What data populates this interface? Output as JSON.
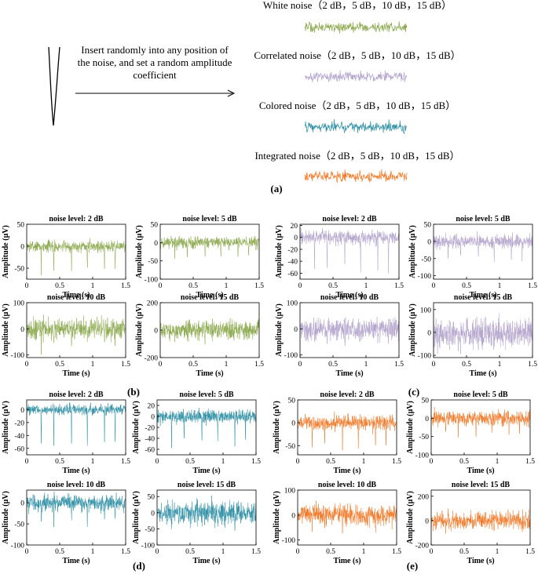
{
  "panel_a": {
    "label": "(a)",
    "insert_text": [
      "Insert randomly into any position of",
      "the noise, and set a random amplitude",
      "coefficient"
    ],
    "rows": [
      {
        "label": "White noise（2 dB，5 dB，10 dB，15 dB）",
        "color": "#8ba84c"
      },
      {
        "label": "Correlated noise（2 dB，5 dB，10 dB，15 dB）",
        "color": "#b3a3cc"
      },
      {
        "label": "Colored noise（2 dB，5 dB，10 dB，15 dB）",
        "color": "#2e8fa5"
      },
      {
        "label": "Integrated noise（2 dB，5 dB，10 dB，15 dB）",
        "color": "#f07826"
      }
    ]
  },
  "chart_data": [
    {
      "panel": "(b)",
      "type": "line",
      "noise": "White noise",
      "color": "#8ba84c",
      "xlabel": "Time (s)",
      "ylabel": "Amplitude (μV)",
      "x_ticks": [
        "0",
        "0.5",
        "1",
        "1.5"
      ],
      "xlim": [
        0,
        1.5
      ],
      "subplots": [
        {
          "title": "noise level: 2 dB",
          "ylim": [
            -75,
            50
          ],
          "y_ticks": [
            50,
            0,
            -50
          ],
          "amp": 20,
          "spike": 60
        },
        {
          "title": "noise level: 5 dB",
          "ylim": [
            -100,
            50
          ],
          "y_ticks": [
            50,
            0,
            -50,
            -100
          ],
          "amp": 25,
          "spike": 45
        },
        {
          "title": "noise level: 10 dB",
          "ylim": [
            -110,
            100
          ],
          "y_ticks": [
            100,
            0,
            -100
          ],
          "amp": 60,
          "spike": 60
        },
        {
          "title": "noise level: 15 dB",
          "ylim": [
            -200,
            200
          ],
          "y_ticks": [
            200,
            0,
            -200
          ],
          "amp": 100,
          "spike": 60
        }
      ]
    },
    {
      "panel": "(c)",
      "type": "line",
      "noise": "Correlated noise",
      "color": "#b3a3cc",
      "xlabel": "Time (s)",
      "ylabel": "Amplitude (μV)",
      "x_ticks": [
        "0",
        "0.5",
        "1",
        "1.5"
      ],
      "xlim": [
        0,
        1.5
      ],
      "subplots": [
        {
          "title": "noise level: 2 dB",
          "ylim": [
            -70,
            22
          ],
          "y_ticks": [
            20,
            0,
            -20,
            -40,
            -60
          ],
          "amp": 18,
          "spike": 60
        },
        {
          "title": "noise level: 5 dB",
          "ylim": [
            -110,
            50
          ],
          "y_ticks": [
            50,
            0,
            -50,
            -100
          ],
          "amp": 30,
          "spike": 55
        },
        {
          "title": "noise level: 10 dB",
          "ylim": [
            -110,
            100
          ],
          "y_ticks": [
            100,
            0,
            -100
          ],
          "amp": 65,
          "spike": 50
        },
        {
          "title": "noise level: 15 dB",
          "ylim": [
            -110,
            130
          ],
          "y_ticks": [
            100,
            0,
            -100
          ],
          "amp": 100,
          "spike": 40
        }
      ]
    },
    {
      "panel": "(d)",
      "type": "line",
      "noise": "Colored noise",
      "color": "#2e8fa5",
      "xlabel": "Time (s)",
      "ylabel": "Amplitude (μV)",
      "x_ticks": [
        "0",
        "0.5",
        "1",
        "1.5"
      ],
      "xlim": [
        0,
        1.5
      ],
      "subplots": [
        {
          "title": "noise level: 2 dB",
          "ylim": [
            -70,
            15
          ],
          "y_ticks": [
            0,
            -20,
            -40,
            -60
          ],
          "amp": 12,
          "spike": 60
        },
        {
          "title": "noise level: 5 dB",
          "ylim": [
            -70,
            30
          ],
          "y_ticks": [
            20,
            0,
            -20,
            -40,
            -60
          ],
          "amp": 18,
          "spike": 55
        },
        {
          "title": "noise level: 10 dB",
          "ylim": [
            -100,
            30
          ],
          "y_ticks": [
            0,
            -50,
            -100
          ],
          "amp": 30,
          "spike": 50
        },
        {
          "title": "noise level: 15 dB",
          "ylim": [
            -100,
            70
          ],
          "y_ticks": [
            50,
            0,
            -50,
            -100
          ],
          "amp": 55,
          "spike": 40
        }
      ]
    },
    {
      "panel": "(e)",
      "type": "line",
      "noise": "Integrated noise",
      "color": "#f07826",
      "xlabel": "Time (s)",
      "ylabel": "Amplitude (μV)",
      "x_ticks": [
        "0",
        "0.5",
        "1",
        "1.5"
      ],
      "xlim": [
        0,
        1.5
      ],
      "subplots": [
        {
          "title": "noise level: 2 dB",
          "ylim": [
            -70,
            50
          ],
          "y_ticks": [
            50,
            0,
            -50
          ],
          "amp": 25,
          "spike": 55
        },
        {
          "title": "noise level: 5 dB",
          "ylim": [
            -100,
            50
          ],
          "y_ticks": [
            50,
            0,
            -50,
            -100
          ],
          "amp": 30,
          "spike": 50
        },
        {
          "title": "noise level: 10 dB",
          "ylim": [
            -120,
            100
          ],
          "y_ticks": [
            100,
            0,
            -100
          ],
          "amp": 60,
          "spike": 50
        },
        {
          "title": "noise level: 15 dB",
          "ylim": [
            -200,
            250
          ],
          "y_ticks": [
            200,
            0,
            -200
          ],
          "amp": 110,
          "spike": 60
        }
      ]
    }
  ]
}
